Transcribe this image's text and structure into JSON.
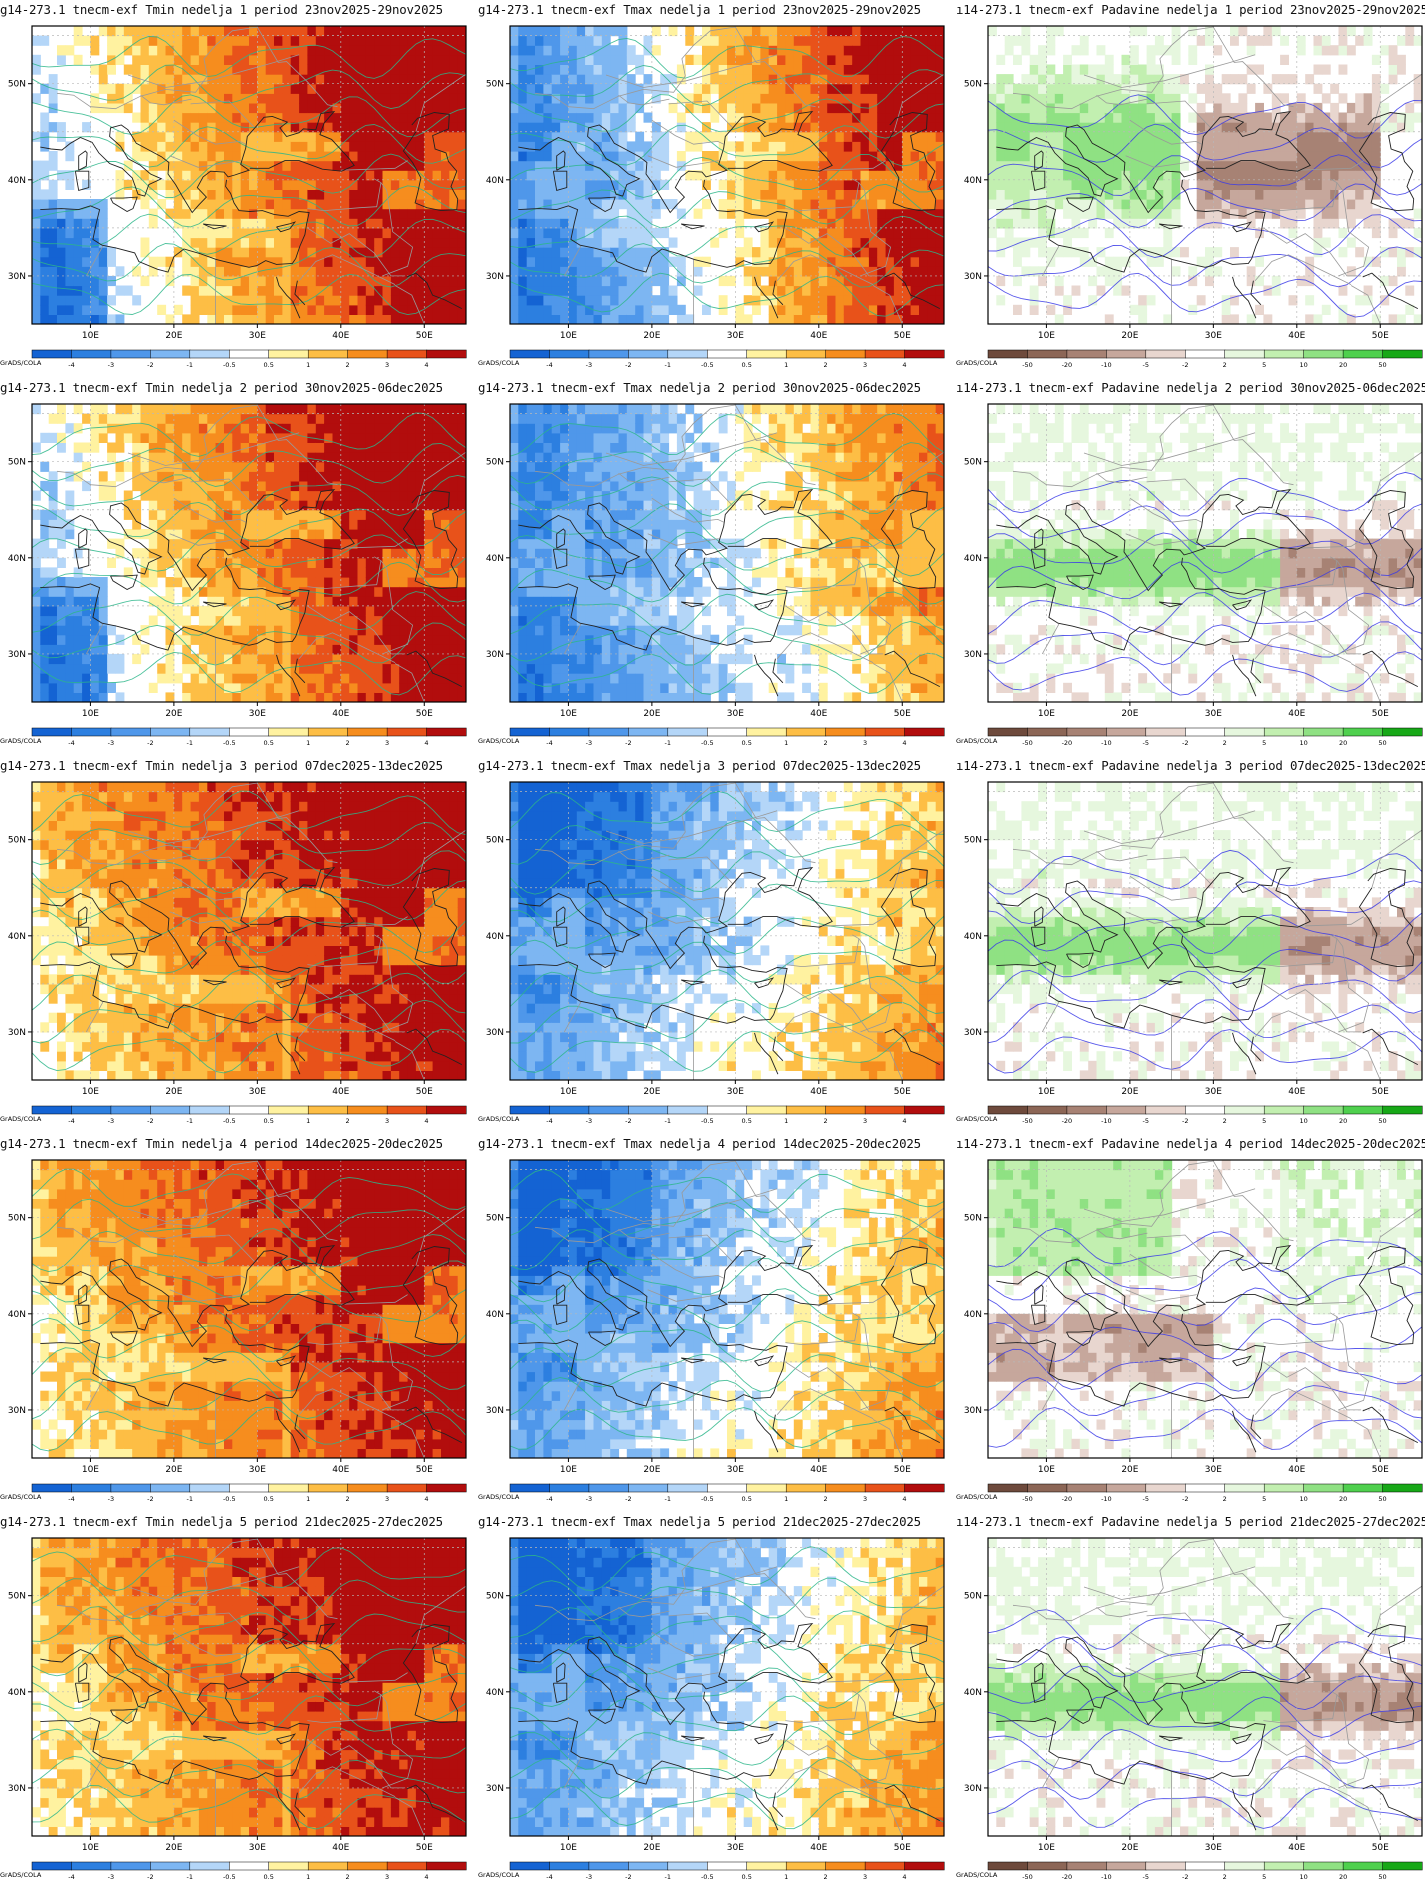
{
  "figure": {
    "rows": [
      {
        "week": 1,
        "panels": [
          {
            "title": "g14-273.1 tnecm-exf Tmin nedelja 1 period 23nov2025-29nov2025",
            "variable": "Tmin",
            "scale": "temp",
            "pattern": "warm_east"
          },
          {
            "title": "g14-273.1 tnecm-exf Tmax nedelja 1 period 23nov2025-29nov2025",
            "variable": "Tmax",
            "scale": "temp",
            "pattern": "cold_west_hot_east"
          },
          {
            "title": "ı14-273.1 tnecm-exf Padavine nedelja 1 period 23nov2025-29nov2025",
            "variable": "Padavine",
            "scale": "precip",
            "pattern": "wet_west_dry_east"
          }
        ]
      },
      {
        "week": 2,
        "panels": [
          {
            "title": "g14-273.1 tnecm-exf Tmin nedelja 2 period 30nov2025-06dec2025",
            "variable": "Tmin",
            "scale": "temp",
            "pattern": "warm_east"
          },
          {
            "title": "g14-273.1 tnecm-exf Tmax nedelja 2 period 30nov2025-06dec2025",
            "variable": "Tmax",
            "scale": "temp",
            "pattern": "cold_west_warm_east"
          },
          {
            "title": "ı14-273.1 tnecm-exf Padavine nedelja 2 period 30nov2025-06dec2025",
            "variable": "Padavine",
            "scale": "precip",
            "pattern": "wet_med"
          }
        ]
      },
      {
        "week": 3,
        "panels": [
          {
            "title": "g14-273.1 tnecm-exf Tmin nedelja 3 period 07dec2025-13dec2025",
            "variable": "Tmin",
            "scale": "temp",
            "pattern": "warm_all"
          },
          {
            "title": "g14-273.1 tnecm-exf Tmax nedelja 3 period 07dec2025-13dec2025",
            "variable": "Tmax",
            "scale": "temp",
            "pattern": "cold_nw_warm_east"
          },
          {
            "title": "ı14-273.1 tnecm-exf Padavine nedelja 3 period 07dec2025-13dec2025",
            "variable": "Padavine",
            "scale": "precip",
            "pattern": "wet_med"
          }
        ]
      },
      {
        "week": 4,
        "panels": [
          {
            "title": "g14-273.1 tnecm-exf Tmin nedelja 4 period 14dec2025-20dec2025",
            "variable": "Tmin",
            "scale": "temp",
            "pattern": "warm_all"
          },
          {
            "title": "g14-273.1 tnecm-exf Tmax nedelja 4 period 14dec2025-20dec2025",
            "variable": "Tmax",
            "scale": "temp",
            "pattern": "cold_nw_warm_east"
          },
          {
            "title": "ı14-273.1 tnecm-exf Padavine nedelja 4 period 14dec2025-20dec2025",
            "variable": "Padavine",
            "scale": "precip",
            "pattern": "mixed"
          }
        ]
      },
      {
        "week": 5,
        "panels": [
          {
            "title": "g14-273.1 tnecm-exf Tmin nedelja 5 period 21dec2025-27dec2025",
            "variable": "Tmin",
            "scale": "temp",
            "pattern": "warm_all"
          },
          {
            "title": "g14-273.1 tnecm-exf Tmax nedelja 5 period 21dec2025-27dec2025",
            "variable": "Tmax",
            "scale": "temp",
            "pattern": "cold_nw_warm_east"
          },
          {
            "title": "ı14-273.1 tnecm-exf Padavine nedelja 5 period 21dec2025-27dec2025",
            "variable": "Padavine",
            "scale": "precip",
            "pattern": "wet_med"
          }
        ]
      }
    ],
    "axes": {
      "lon_ticks": [
        "10E",
        "20E",
        "30E",
        "40E",
        "50E"
      ],
      "lat_ticks": [
        "50N",
        "40N",
        "30N"
      ],
      "lon_range": [
        3,
        55
      ],
      "lat_range": [
        25,
        56
      ]
    },
    "scales": {
      "temp": {
        "tick_labels": [
          "-4",
          "-3",
          "-2",
          "-1",
          "-0.5",
          "0.5",
          "1",
          "2",
          "3",
          "4"
        ],
        "colors": [
          "#1463d3",
          "#2c7fe0",
          "#4f97ea",
          "#7db6f2",
          "#b4d6f8",
          "#ffffff",
          "#fff2a0",
          "#fdbe45",
          "#f68d1e",
          "#e8521a",
          "#b20d0d"
        ]
      },
      "precip": {
        "tick_labels": [
          "-50",
          "-20",
          "-10",
          "-5",
          "-2",
          "2",
          "5",
          "10",
          "20",
          "50"
        ],
        "colors": [
          "#6e4a3c",
          "#8c6656",
          "#a78274",
          "#c6a79c",
          "#e8d6cf",
          "#ffffff",
          "#e6f7de",
          "#c2efb0",
          "#8fe183",
          "#4fd04e",
          "#17a817"
        ]
      }
    },
    "logo": "GrADS/COLA",
    "colors": {
      "contour_temp": "#2cb68a",
      "contour_precip": "#3b3be8",
      "coast": "#222222",
      "border": "#999999",
      "grid": "#b8b8b8"
    }
  }
}
